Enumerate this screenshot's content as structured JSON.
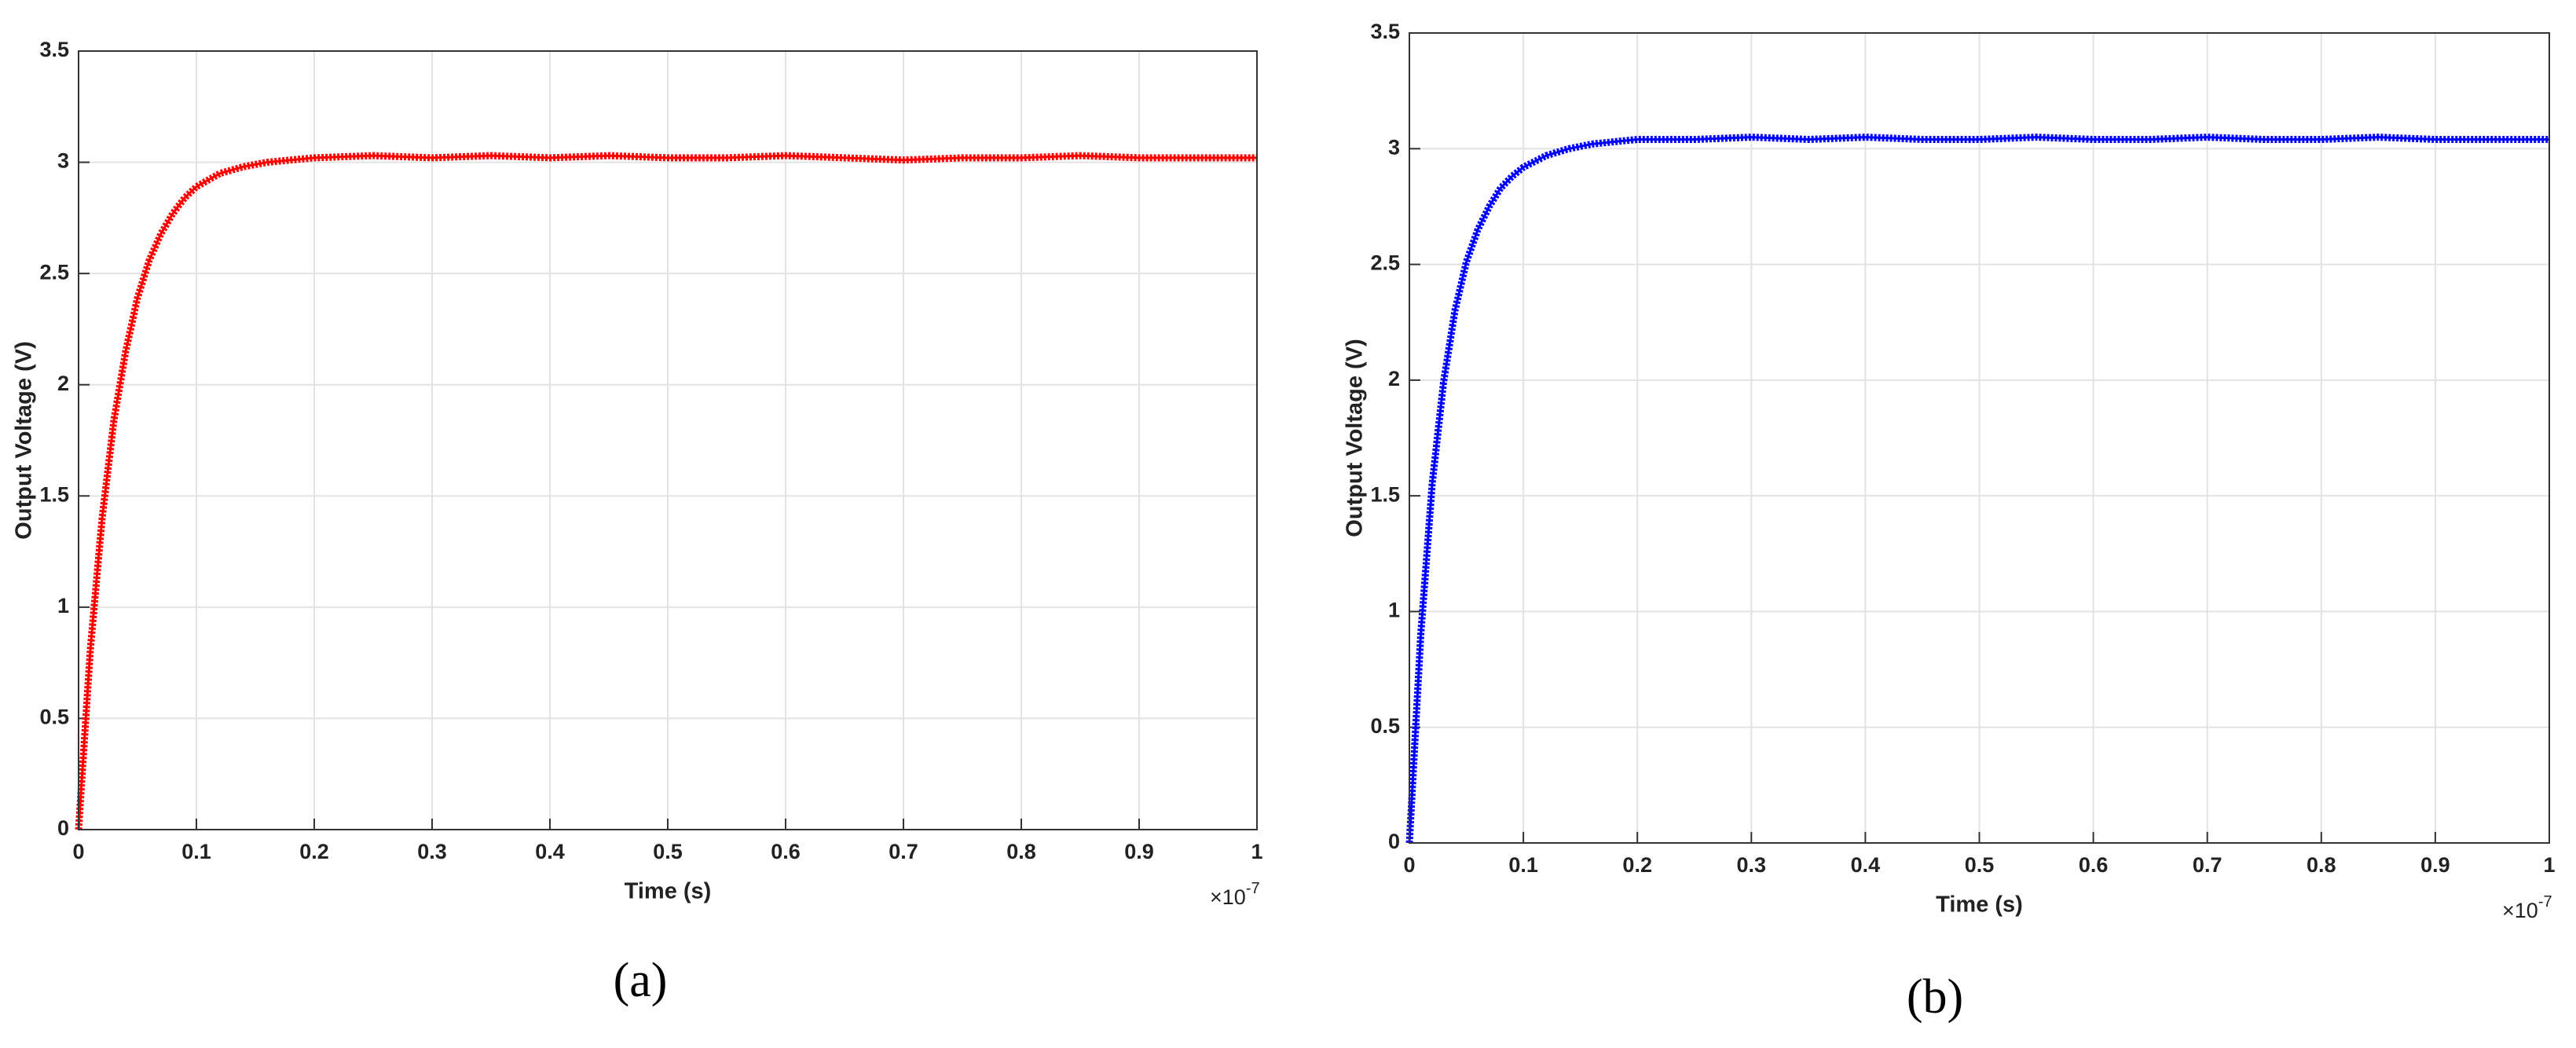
{
  "chart_data": [
    {
      "type": "line",
      "caption": "(a)",
      "xlabel": "Time (s)",
      "ylabel": "Output Voltage (V)",
      "x_scale_label": {
        "base": "×10",
        "exponent": "-7"
      },
      "x": [
        0,
        0.01,
        0.02,
        0.03,
        0.04,
        0.05,
        0.06,
        0.07,
        0.08,
        0.09,
        0.1,
        0.12,
        0.14,
        0.16,
        0.18,
        0.2,
        0.25,
        0.3,
        0.35,
        0.4,
        0.45,
        0.5,
        0.55,
        0.6,
        0.65,
        0.7,
        0.75,
        0.8,
        0.85,
        0.9,
        0.95,
        1
      ],
      "values": [
        0,
        0.81,
        1.4,
        1.84,
        2.15,
        2.39,
        2.56,
        2.68,
        2.77,
        2.84,
        2.89,
        2.95,
        2.98,
        3.0,
        3.01,
        3.02,
        3.03,
        3.02,
        3.03,
        3.02,
        3.03,
        3.02,
        3.02,
        3.03,
        3.02,
        3.01,
        3.02,
        3.02,
        3.03,
        3.02,
        3.02,
        3.02
      ],
      "color": "#ff0000",
      "xlim": [
        0,
        1
      ],
      "ylim": [
        0,
        3.5
      ],
      "xticks": [
        0,
        0.1,
        0.2,
        0.3,
        0.4,
        0.5,
        0.6,
        0.7,
        0.8,
        0.9,
        1
      ],
      "yticks": [
        0,
        0.5,
        1,
        1.5,
        2,
        2.5,
        3,
        3.5
      ],
      "grid": true
    },
    {
      "type": "line",
      "caption": "(b)",
      "xlabel": "Time (s)",
      "ylabel": "Output Voltage (V)",
      "x_scale_label": {
        "base": "×10",
        "exponent": "-7"
      },
      "x": [
        0,
        0.01,
        0.02,
        0.03,
        0.04,
        0.05,
        0.06,
        0.07,
        0.08,
        0.09,
        0.1,
        0.12,
        0.14,
        0.16,
        0.18,
        0.2,
        0.25,
        0.3,
        0.35,
        0.4,
        0.45,
        0.5,
        0.55,
        0.6,
        0.65,
        0.7,
        0.75,
        0.8,
        0.85,
        0.9,
        0.95,
        1
      ],
      "values": [
        0,
        0.9,
        1.55,
        1.99,
        2.3,
        2.51,
        2.65,
        2.75,
        2.83,
        2.88,
        2.92,
        2.97,
        3.0,
        3.02,
        3.03,
        3.04,
        3.04,
        3.05,
        3.04,
        3.05,
        3.04,
        3.04,
        3.05,
        3.04,
        3.04,
        3.05,
        3.04,
        3.04,
        3.05,
        3.04,
        3.04,
        3.04
      ],
      "color": "#0000ff",
      "xlim": [
        0,
        1
      ],
      "ylim": [
        0,
        3.5
      ],
      "xticks": [
        0,
        0.1,
        0.2,
        0.3,
        0.4,
        0.5,
        0.6,
        0.7,
        0.8,
        0.9,
        1
      ],
      "yticks": [
        0,
        0.5,
        1,
        1.5,
        2,
        2.5,
        3,
        3.5
      ],
      "grid": true
    }
  ]
}
